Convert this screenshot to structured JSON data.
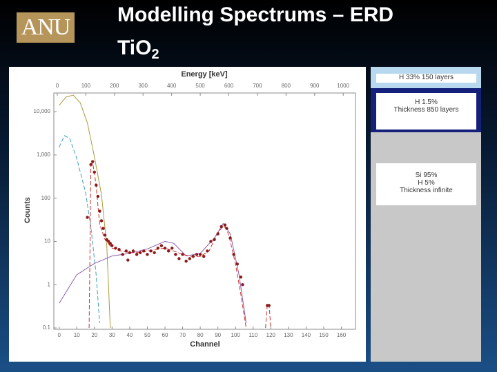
{
  "slide": {
    "logo": "ANU",
    "title_line1": "Modelling Spectrums – ERD",
    "formula": "TiO",
    "formula_subscript": "2",
    "layers": [
      [
        "H 33% 150 layers"
      ],
      [
        "H 1.5%",
        "Thickness 850 layers"
      ],
      [
        "Si 95%",
        "H 5%",
        "Thickness infinite"
      ]
    ]
  },
  "chart_data": {
    "type": "scatter",
    "x_label": "Channel",
    "x2_label": "Energy [keV]",
    "y_label": "Counts",
    "log_y": true,
    "xlim": [
      -3,
      168
    ],
    "xticks": [
      0,
      10,
      20,
      30,
      40,
      50,
      60,
      70,
      80,
      90,
      100,
      110,
      120,
      130,
      140,
      150,
      160
    ],
    "x2lim": [
      -12,
      1043
    ],
    "x2ticks": [
      0,
      100,
      200,
      300,
      400,
      500,
      600,
      700,
      800,
      900,
      1000
    ],
    "ylim": [
      0.093,
      27000
    ],
    "yticks": [
      0.1,
      1,
      10,
      100,
      {
        "value": 1000,
        "label": "1,000"
      },
      {
        "value": 10000,
        "label": "10,000"
      }
    ],
    "series": [
      {
        "color": "#a89a3a",
        "style": "line",
        "x": [
          0,
          4,
          8,
          12,
          16,
          20,
          24,
          27,
          29
        ],
        "values": [
          14000,
          22000,
          24000,
          16000,
          5500,
          900,
          120,
          8,
          0.1
        ]
      },
      {
        "color": "#3a9fb8",
        "style": "dashed",
        "x": [
          0,
          3,
          6,
          10,
          15,
          18,
          21,
          23
        ],
        "values": [
          1500,
          2800,
          2400,
          830,
          135,
          21,
          1.7,
          0.13
        ]
      },
      {
        "color": "#8a5aa8",
        "style": "line",
        "x": [
          0,
          10,
          20,
          30,
          40,
          50,
          60,
          65,
          72,
          80,
          88,
          93,
          97,
          102,
          106
        ],
        "values": [
          0.37,
          1.7,
          3.1,
          4.6,
          5.3,
          6.7,
          10,
          9,
          4.6,
          5.3,
          12,
          26,
          15,
          1.7,
          0.13
        ]
      },
      {
        "color": "#d03030",
        "style": "dashed",
        "x": [
          17,
          18,
          19,
          20,
          21,
          23,
          26,
          30,
          35,
          40,
          45,
          50,
          55,
          60,
          65,
          70,
          75,
          80,
          85,
          88,
          91,
          93,
          95,
          97,
          100,
          103,
          106,
          110,
          117,
          118,
          119,
          120
        ],
        "values": [
          0.1,
          550,
          650,
          380,
          190,
          25,
          11,
          7,
          6,
          5.5,
          5.5,
          6,
          6.5,
          7,
          6,
          5,
          4.5,
          4.5,
          6,
          11,
          18,
          22,
          20,
          10,
          3,
          0.6,
          0.1,
          null,
          0.1,
          0.35,
          0.35,
          0.1
        ]
      },
      {
        "color": "#8b1a1a",
        "style": "points",
        "x": [
          16,
          18,
          19,
          20,
          21,
          22,
          23,
          24,
          25,
          26,
          27,
          28,
          29,
          30,
          32,
          34,
          36,
          38,
          39,
          40,
          42,
          44,
          46,
          48,
          50,
          52,
          54,
          56,
          58,
          60,
          62,
          64,
          66,
          68,
          70,
          72,
          74,
          76,
          78,
          80,
          82,
          84,
          86,
          88,
          90,
          92,
          94,
          95,
          97,
          99,
          101,
          103,
          104,
          118,
          119
        ],
        "values": [
          36,
          600,
          700,
          400,
          200,
          110,
          50,
          30,
          20,
          14,
          11,
          10,
          9,
          8,
          7,
          6.5,
          5,
          6,
          3.7,
          5.5,
          6,
          5,
          5.5,
          6,
          5,
          6,
          5.5,
          7,
          8,
          7,
          6,
          7,
          5,
          4,
          5,
          3.5,
          4,
          4.5,
          5,
          5,
          4.5,
          6,
          10,
          11,
          15,
          22,
          24,
          20,
          12,
          5,
          3,
          1.5,
          1,
          0.33,
          0.33
        ]
      }
    ]
  }
}
